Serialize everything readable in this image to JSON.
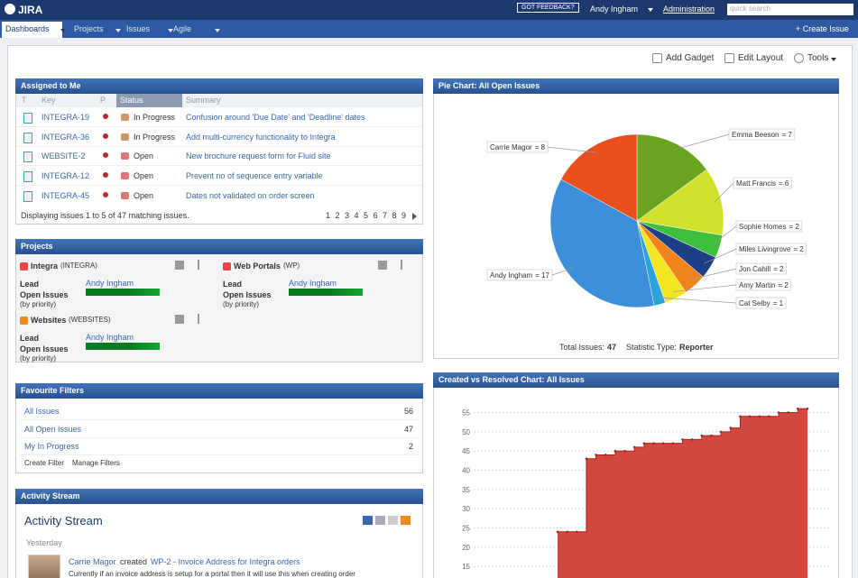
{
  "header": {
    "logo": "JIRA",
    "feedback": "GOT FEEDBACK?",
    "user": "Andy Ingham",
    "admin": "Administration",
    "search": "quick search"
  },
  "nav": {
    "tabs": [
      "Dashboards",
      "Projects",
      "Issues",
      "Agile"
    ],
    "create": "+ Create Issue"
  },
  "toolbar": [
    "Add Gadget",
    "Edit Layout",
    "Tools"
  ],
  "assigned": {
    "title": "Assigned to Me",
    "columns": [
      "T",
      "Key",
      "P",
      "Status",
      "Summary"
    ],
    "rows": [
      [
        "INTEGRA-19",
        "In Progress",
        "Confusion around 'Due Date' and 'Deadline' dates"
      ],
      [
        "INTEGRA-36",
        "In Progress",
        "Add multi-currency functionality to Integra"
      ],
      [
        "WEBSITE-2",
        "Open",
        "New brochure request form for Fluid site"
      ],
      [
        "INTEGRA-12",
        "Open",
        "Prevent no of sequence entry variable"
      ],
      [
        "INTEGRA-45",
        "Open",
        "Dates not validated on order screen"
      ]
    ],
    "footer": "Displaying issues 1 to 5 of 47 matching issues.",
    "pages": [
      1,
      2,
      3,
      4,
      5,
      6,
      7,
      8,
      9
    ]
  },
  "projects": {
    "title": "Projects",
    "lead_label": "Lead",
    "open_label": "Open Issues",
    "by_label": "(by priority)",
    "items": [
      {
        "name": "Integra",
        "key": "(INTEGRA)",
        "lead": "Andy Ingham"
      },
      {
        "name": "Web Portals",
        "key": "(WP)",
        "lead": "Andy Ingham"
      },
      {
        "name": "Websites",
        "key": "(WEBSITES)",
        "lead": "Andy Ingham"
      }
    ]
  },
  "filters": {
    "title": "Favourite Filters",
    "rows": [
      [
        "All Issues",
        56
      ],
      [
        "All Open Issues",
        47
      ],
      [
        "My In Progress",
        2
      ]
    ],
    "links": [
      "Create Filter",
      "Manage Filters"
    ]
  },
  "activity": {
    "title": "Activity Stream",
    "heading": "Activity Stream",
    "day": "Yesterday",
    "user": "Carrie Magor",
    "action": "created",
    "link": "WP-2 - Invoice Address for Integra orders",
    "text": "Currently if an invoice address is setup for a portal then it will use this when creating order"
  },
  "chart_data": [
    {
      "type": "pie",
      "title": "Pie Chart: All Open Issues",
      "categories": [
        "Emma Beeson",
        "Matt Francis",
        "Sophie Homes",
        "Miles Livingrove",
        "Jon Cahill",
        "Amy Martin",
        "Cat Selby",
        "Andy Ingham",
        "Carrie Magor"
      ],
      "values": [
        7,
        6,
        2,
        2,
        2,
        2,
        1,
        17,
        8
      ],
      "value_labels": [
        "= 7",
        "= 6",
        "= 2",
        "= 2",
        "= 2",
        "= 2",
        "= 1",
        "= 17",
        "= 8"
      ],
      "colors": [
        "#6aa51f",
        "#d2e12c",
        "#3dbf3d",
        "#1d3f86",
        "#f0841b",
        "#f3e520",
        "#2aa2de",
        "#3c8fd8",
        "#e84f1c"
      ],
      "total_label": "Total Issues:",
      "total": 47,
      "stat_label": "Statistic Type:",
      "stat": "Reporter"
    },
    {
      "type": "area",
      "title": "Created vs Resolved Chart: All Issues",
      "color": "#d0483f",
      "line_color": "#b0201c",
      "values": [
        24,
        24,
        24,
        43,
        44,
        44,
        45,
        45,
        46,
        47,
        47,
        47,
        47,
        48,
        48,
        49,
        49,
        50,
        51,
        54,
        54,
        54,
        54,
        55,
        55,
        56,
        56
      ],
      "ylim": [
        12,
        57
      ],
      "yticks": [
        15,
        20,
        25,
        30,
        35,
        40,
        45,
        50,
        55
      ],
      "grid": true
    }
  ]
}
